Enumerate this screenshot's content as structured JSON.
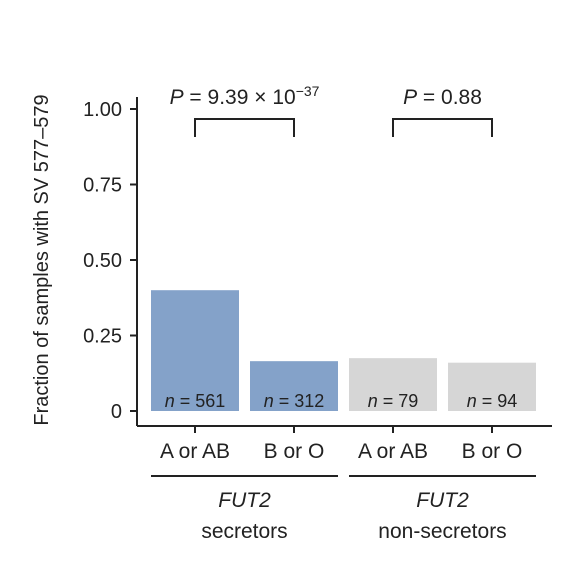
{
  "chart_data": {
    "type": "bar",
    "ylabel": "Fraction of samples with SV 577–579",
    "ylim": [
      0,
      1.0
    ],
    "yticks": [
      {
        "value": 0,
        "label": "0"
      },
      {
        "value": 0.25,
        "label": "0.25"
      },
      {
        "value": 0.5,
        "label": "0.50"
      },
      {
        "value": 0.75,
        "label": "0.75"
      },
      {
        "value": 1.0,
        "label": "1.00"
      }
    ],
    "bars": [
      {
        "category": "A or AB",
        "value": 0.4,
        "n_prefix": "n",
        "n_value": " = 561",
        "group": 0,
        "color": "#84a2c9"
      },
      {
        "category": "B or O",
        "value": 0.165,
        "n_prefix": "n",
        "n_value": " = 312",
        "group": 0,
        "color": "#84a2c9"
      },
      {
        "category": "A or AB",
        "value": 0.175,
        "n_prefix": "n",
        "n_value": " = 79",
        "group": 1,
        "color": "#d6d6d6"
      },
      {
        "category": "B or O",
        "value": 0.16,
        "n_prefix": "n",
        "n_value": " = 94",
        "group": 1,
        "color": "#d6d6d6"
      }
    ],
    "groups": [
      {
        "gene": "FUT2",
        "status": "secretors"
      },
      {
        "gene": "FUT2",
        "status": "non-secretors"
      }
    ],
    "comparisons": [
      {
        "from_bar": 0,
        "to_bar": 1,
        "p_symbol": "P",
        "p_text": " = 9.39 × 10",
        "p_exponent": "−37"
      },
      {
        "from_bar": 2,
        "to_bar": 3,
        "p_symbol": "P",
        "p_text": " = 0.88",
        "p_exponent": ""
      }
    ],
    "grid": false,
    "legend": "none"
  }
}
